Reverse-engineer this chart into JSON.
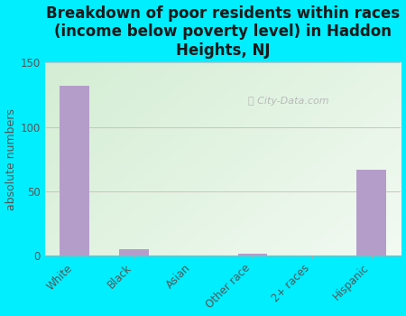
{
  "title": "Breakdown of poor residents within races\n(income below poverty level) in Haddon\nHeights, NJ",
  "categories": [
    "White",
    "Black",
    "Asian",
    "Other race",
    "2+ races",
    "Hispanic"
  ],
  "values": [
    132,
    5,
    0,
    1,
    0,
    67
  ],
  "bar_color": "#b59dca",
  "ylabel": "absolute numbers",
  "ylim": [
    0,
    150
  ],
  "yticks": [
    0,
    50,
    100,
    150
  ],
  "background_color": "#00eeff",
  "plot_bg_top_left": "#d4edd8",
  "plot_bg_bottom_right": "#eef8ee",
  "title_fontsize": 12,
  "axis_label_fontsize": 9,
  "tick_fontsize": 8.5,
  "watermark": "City-Data.com",
  "title_color": "#1a1a1a",
  "tick_color": "#555555",
  "grid_color": "#cccccc"
}
